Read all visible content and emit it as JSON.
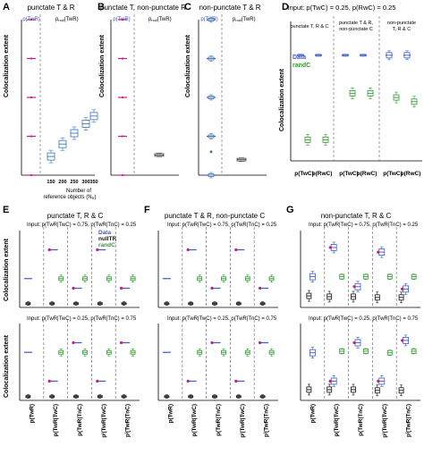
{
  "colors": {
    "data": "#3a5bc7",
    "nullITR": "#111111",
    "randC": "#2e9a2e",
    "magenta": "#c0208a",
    "box": "#3878b8",
    "dark": "#444444"
  },
  "panels": {
    "A": {
      "letter": "A",
      "title": "punctate T & R",
      "label1": "p(TwR)",
      "label2": "p",
      "label2_sub": "null",
      "label2_rest": "(TwR)",
      "xlabel1": "Number of",
      "xlabel2": "reference objects (N",
      "xlabel2_sub": "R",
      "xlabel2_end": ")",
      "xticks": [
        "150",
        "200",
        "250",
        "300",
        "350"
      ],
      "ylabel": "Colocalization extent"
    },
    "B": {
      "letter": "B",
      "title": "punctate T, non-punctate R",
      "label1": "p(TwR)",
      "label2": "p",
      "label2_sub": "null",
      "label2_rest": "(TwR)",
      "ylabel": "Colocalization extent"
    },
    "C": {
      "letter": "C",
      "title": "non-punctate T & R",
      "label1": "p(TwR)",
      "label2": "p",
      "label2_sub": "null",
      "label2_rest": "(TwR)",
      "ylabel": "Colocalization extent"
    },
    "D": {
      "letter": "D",
      "input": "Input: p(TwC) = 0.25, p(RwC) = 0.25",
      "sub1": "punctate T, R & C",
      "sub2a": "punctate T & R,",
      "sub2b": "non-punctate C",
      "sub3a": "non-punctate",
      "sub3b": "T, R & C",
      "legend_data": "Data",
      "legend_rand": "randC",
      "xticks": [
        "p(TwC)",
        "p(RwC)",
        "p(TwC)",
        "p(RwC)",
        "p(TwC)",
        "p(RwC)"
      ],
      "ylabel": "Colocalization extent"
    },
    "E": {
      "letter": "E",
      "title": "punctate T, R & C",
      "input_top": "Input: p(TwR|TwC) = 0.75, p(TwR|TnC) = 0.25",
      "input_bottom": "Input: p(TwR|TwC) = 0.25, p(TwR|TnC) = 0.75",
      "legend": [
        "Data",
        "nullTR",
        "randC"
      ],
      "ylabel": "Colocalization extent"
    },
    "F": {
      "letter": "F",
      "title": "punctate T & R, non-punctate C",
      "input_top": "Input: p(TwR|TwC) = 0.75, p(TwR|TnC) = 0.25",
      "input_bottom": "Input: p(TwR|TwC) = 0.25, p(TwR|TnC) = 0.75"
    },
    "G": {
      "letter": "G",
      "title": "non-punctate T, R & C",
      "input_top": "Input: p(TwR|TwC) = 0.75, p(TwR|TnC) = 0.25",
      "input_bottom": "Input: p(TwR|TwC) = 0.25, p(TwR|TnC) = 0.75"
    }
  },
  "xcat_labels": [
    "p(TwR)",
    "p(TwR|TwC)",
    "p(TwR|TnC)",
    "pⁱ(TwR|TwC)",
    "pⁱ(TwR|TnC)"
  ],
  "chart_data": [
    {
      "panel": "A",
      "type": "box",
      "x_label": "Number of reference objects (N_R)",
      "categories": [
        "150",
        "200",
        "250",
        "300",
        "350"
      ],
      "y_label": "Colocalization extent",
      "series": [
        {
          "name": "p(TwR)",
          "values": [
            1.0,
            0.75,
            0.5,
            0.25,
            0.0
          ]
        },
        {
          "name": "p_null(TwR)",
          "values": [
            0.12,
            0.2,
            0.27,
            0.33,
            0.38
          ]
        }
      ]
    },
    {
      "panel": "B",
      "type": "box",
      "y_label": "Colocalization extent",
      "series": [
        {
          "name": "p(TwR)",
          "values": [
            1.0,
            0.75,
            0.5,
            0.25,
            0.0
          ]
        },
        {
          "name": "p_null(TwR)",
          "values": [
            0.13
          ]
        }
      ]
    },
    {
      "panel": "C",
      "type": "box",
      "y_label": "Colocalization extent",
      "series": [
        {
          "name": "p(TwR)",
          "values": [
            1.0,
            0.75,
            0.5,
            0.25,
            0.0
          ]
        },
        {
          "name": "p_null(TwR)",
          "values": [
            0.1
          ]
        }
      ]
    },
    {
      "panel": "D",
      "type": "box",
      "categories": [
        "p(TwC)",
        "p(RwC)",
        "p(TwC)",
        "p(RwC)",
        "p(TwC)",
        "p(RwC)"
      ],
      "series": [
        {
          "name": "Data",
          "values": [
            0.25,
            0.25,
            0.25,
            0.25,
            0.25,
            0.25
          ]
        },
        {
          "name": "randC",
          "values": [
            0.05,
            0.05,
            0.16,
            0.16,
            0.15,
            0.14
          ]
        }
      ]
    },
    {
      "panel": "E-top",
      "type": "box",
      "categories": [
        "p(TwR)",
        "p(TwR|TwC)",
        "p(TwR|TnC)",
        "pⁱ(TwR|TwC)",
        "pⁱ(TwR|TnC)"
      ],
      "series": [
        {
          "name": "Data",
          "values": [
            0.375,
            0.75,
            0.25,
            0.75,
            0.25
          ]
        },
        {
          "name": "nullTR",
          "values": [
            0.05,
            0.05,
            0.05,
            0.05,
            0.05
          ]
        },
        {
          "name": "randC",
          "values": [
            null,
            0.375,
            0.375,
            0.375,
            0.375
          ]
        }
      ]
    },
    {
      "panel": "E-bottom",
      "type": "box",
      "categories": [
        "p(TwR)",
        "p(TwR|TwC)",
        "p(TwR|TnC)",
        "pⁱ(TwR|TwC)",
        "pⁱ(TwR|TnC)"
      ],
      "series": [
        {
          "name": "Data",
          "values": [
            0.625,
            0.25,
            0.75,
            0.25,
            0.75
          ]
        },
        {
          "name": "nullTR",
          "values": [
            0.05,
            0.05,
            0.05,
            0.05,
            0.05
          ]
        },
        {
          "name": "randC",
          "values": [
            null,
            0.625,
            0.625,
            0.625,
            0.625
          ]
        }
      ]
    },
    {
      "panel": "F-top",
      "type": "box",
      "categories": [
        "p(TwR)",
        "p(TwR|TwC)",
        "p(TwR|TnC)",
        "pⁱ(TwR|TwC)",
        "pⁱ(TwR|TnC)"
      ],
      "series": [
        {
          "name": "Data",
          "values": [
            0.375,
            0.75,
            0.25,
            0.75,
            0.25
          ]
        },
        {
          "name": "nullTR",
          "values": [
            0.05,
            0.05,
            0.05,
            0.05,
            0.05
          ]
        },
        {
          "name": "randC",
          "values": [
            null,
            0.375,
            0.375,
            0.375,
            0.375
          ]
        }
      ]
    },
    {
      "panel": "F-bottom",
      "type": "box",
      "categories": [
        "p(TwR)",
        "p(TwR|TwC)",
        "p(TwR|TnC)",
        "pⁱ(TwR|TwC)",
        "pⁱ(TwR|TnC)"
      ],
      "series": [
        {
          "name": "Data",
          "values": [
            0.625,
            0.25,
            0.75,
            0.25,
            0.75
          ]
        },
        {
          "name": "nullTR",
          "values": [
            0.05,
            0.05,
            0.05,
            0.05,
            0.05
          ]
        },
        {
          "name": "randC",
          "values": [
            null,
            0.625,
            0.625,
            0.625,
            0.625
          ]
        }
      ]
    },
    {
      "panel": "G-top",
      "type": "box",
      "categories": [
        "p(TwR)",
        "p(TwR|TwC)",
        "p(TwR|TnC)",
        "pⁱ(TwR|TwC)",
        "pⁱ(TwR|TnC)"
      ],
      "series": [
        {
          "name": "Data",
          "values": [
            0.4,
            0.78,
            0.27,
            0.72,
            0.24
          ]
        },
        {
          "name": "nullTR",
          "values": [
            0.15,
            0.14,
            0.14,
            0.13,
            0.13
          ]
        },
        {
          "name": "randC",
          "values": [
            null,
            0.4,
            0.4,
            0.4,
            0.4
          ]
        }
      ]
    },
    {
      "panel": "G-bottom",
      "type": "box",
      "categories": [
        "p(TwR)",
        "p(TwR|TwC)",
        "p(TwR|TnC)",
        "pⁱ(TwR|TwC)",
        "pⁱ(TwR|TnC)"
      ],
      "series": [
        {
          "name": "Data",
          "values": [
            0.62,
            0.25,
            0.75,
            0.25,
            0.78
          ]
        },
        {
          "name": "nullTR",
          "values": [
            0.14,
            0.14,
            0.14,
            0.13,
            0.13
          ]
        },
        {
          "name": "randC",
          "values": [
            null,
            0.64,
            0.64,
            0.62,
            0.64
          ]
        }
      ]
    }
  ]
}
